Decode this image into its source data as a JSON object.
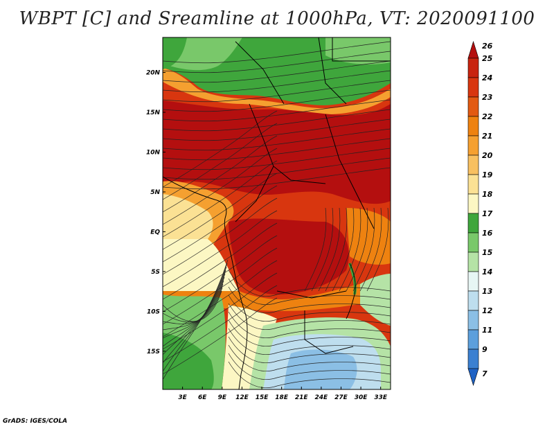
{
  "title": "WBPT [C] and Sreamline at 1000hPa, VT: 2020091100",
  "credit": "GrADS: IGES/COLA",
  "map": {
    "lat_labels": [
      "20N",
      "15N",
      "10N",
      "5N",
      "EQ",
      "5S",
      "10S",
      "15S"
    ],
    "lat_values": [
      20,
      15,
      10,
      5,
      0,
      -5,
      -10,
      -15
    ],
    "lon_labels": [
      "3E",
      "6E",
      "9E",
      "12E",
      "15E",
      "18E",
      "21E",
      "24E",
      "27E",
      "30E",
      "33E"
    ],
    "lon_values": [
      3,
      6,
      9,
      12,
      15,
      18,
      21,
      24,
      27,
      30,
      33
    ],
    "lat_range": [
      -19.8,
      24.4
    ],
    "lon_range": [
      0,
      34.5
    ]
  },
  "colorbar": {
    "labels": [
      "26",
      "25",
      "24",
      "23",
      "22",
      "21",
      "20",
      "19",
      "18",
      "17",
      "16",
      "15",
      "14",
      "13",
      "12",
      "11",
      "9",
      "7"
    ],
    "colors": [
      "#b40f0f",
      "#c8240f",
      "#d8360f",
      "#e25a12",
      "#ee8210",
      "#f5a030",
      "#f8c060",
      "#fbe194",
      "#fcf7c3",
      "#3fa63c",
      "#79c86a",
      "#b5e3a6",
      "#e7f6f4",
      "#bedeee",
      "#8bbfe5",
      "#5c9fdc",
      "#3b80d1",
      "#1e62c4"
    ]
  }
}
